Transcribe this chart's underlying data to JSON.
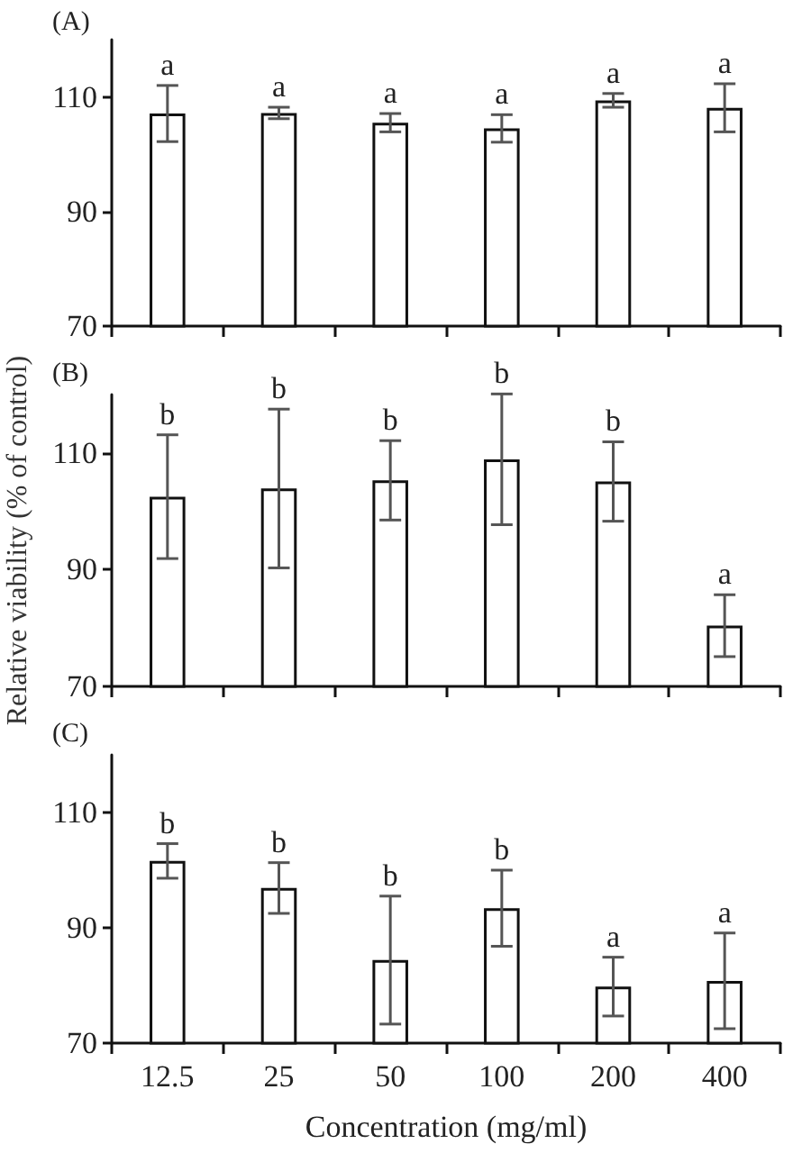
{
  "chart_data": [
    {
      "type": "bar",
      "title": "(A)",
      "categories": [
        "12.5",
        "25",
        "50",
        "100",
        "200",
        "400"
      ],
      "tick_labels": "y",
      "grid": false,
      "ylim": [
        70,
        120
      ],
      "yticks": [
        70,
        90,
        110
      ],
      "series": [
        {
          "color": "#ffffff",
          "values": [
            107.1,
            107.2,
            105.5,
            104.5,
            109.4,
            108.1
          ],
          "errors": [
            4.9,
            1,
            1.6,
            2.4,
            1.2,
            4.2
          ]
        }
      ],
      "annotations": [
        {
          "text": "a",
          "x": "12.5",
          "y": 112
        },
        {
          "text": "a",
          "x": "25",
          "y": 108.2
        },
        {
          "text": "a",
          "x": "50",
          "y": 107.1
        },
        {
          "text": "a",
          "x": "100",
          "y": 106.9
        },
        {
          "text": "a",
          "x": "200",
          "y": 110.6
        },
        {
          "text": "a",
          "x": "400",
          "y": 112.3
        }
      ]
    },
    {
      "type": "bar",
      "title": "(B)",
      "ylabel": "Relative viability (% of control)",
      "categories": [
        "12.5",
        "25",
        "50",
        "100",
        "200",
        "400"
      ],
      "tick_labels": "y",
      "grid": false,
      "ylim": [
        70,
        120
      ],
      "yticks": [
        70,
        90,
        110
      ],
      "series": [
        {
          "color": "#ffffff",
          "values": [
            102.5,
            103.9,
            105.3,
            108.9,
            105.1,
            80.4
          ],
          "errors": [
            10.6,
            13.6,
            6.8,
            11.2,
            6.8,
            5.3
          ]
        }
      ],
      "annotations": [
        {
          "text": "b",
          "x": "12.5",
          "y": 113.1
        },
        {
          "text": "b",
          "x": "25",
          "y": 117.5
        },
        {
          "text": "b",
          "x": "50",
          "y": 112.1
        },
        {
          "text": "b",
          "x": "100",
          "y": 120.1
        },
        {
          "text": "b",
          "x": "200",
          "y": 111.9
        },
        {
          "text": "a",
          "x": "400",
          "y": 85.7
        }
      ]
    },
    {
      "type": "bar",
      "title": "(C)",
      "xlabel": "Concentration (mg/ml)",
      "categories": [
        "12.5",
        "25",
        "50",
        "100",
        "200",
        "400"
      ],
      "grid": false,
      "ylim": [
        70,
        120
      ],
      "yticks": [
        70,
        90,
        110
      ],
      "series": [
        {
          "color": "#ffffff",
          "values": [
            101.6,
            96.9,
            84.4,
            93.4,
            79.8,
            80.8
          ],
          "errors": [
            3,
            4.4,
            11.1,
            6.6,
            5.1,
            8.3
          ]
        }
      ],
      "annotations": [
        {
          "text": "b",
          "x": "12.5",
          "y": 104.6
        },
        {
          "text": "b",
          "x": "25",
          "y": 101.3
        },
        {
          "text": "b",
          "x": "50",
          "y": 95.5
        },
        {
          "text": "b",
          "x": "100",
          "y": 100
        },
        {
          "text": "a",
          "x": "200",
          "y": 84.9
        },
        {
          "text": "a",
          "x": "400",
          "y": 89.1
        }
      ]
    }
  ]
}
